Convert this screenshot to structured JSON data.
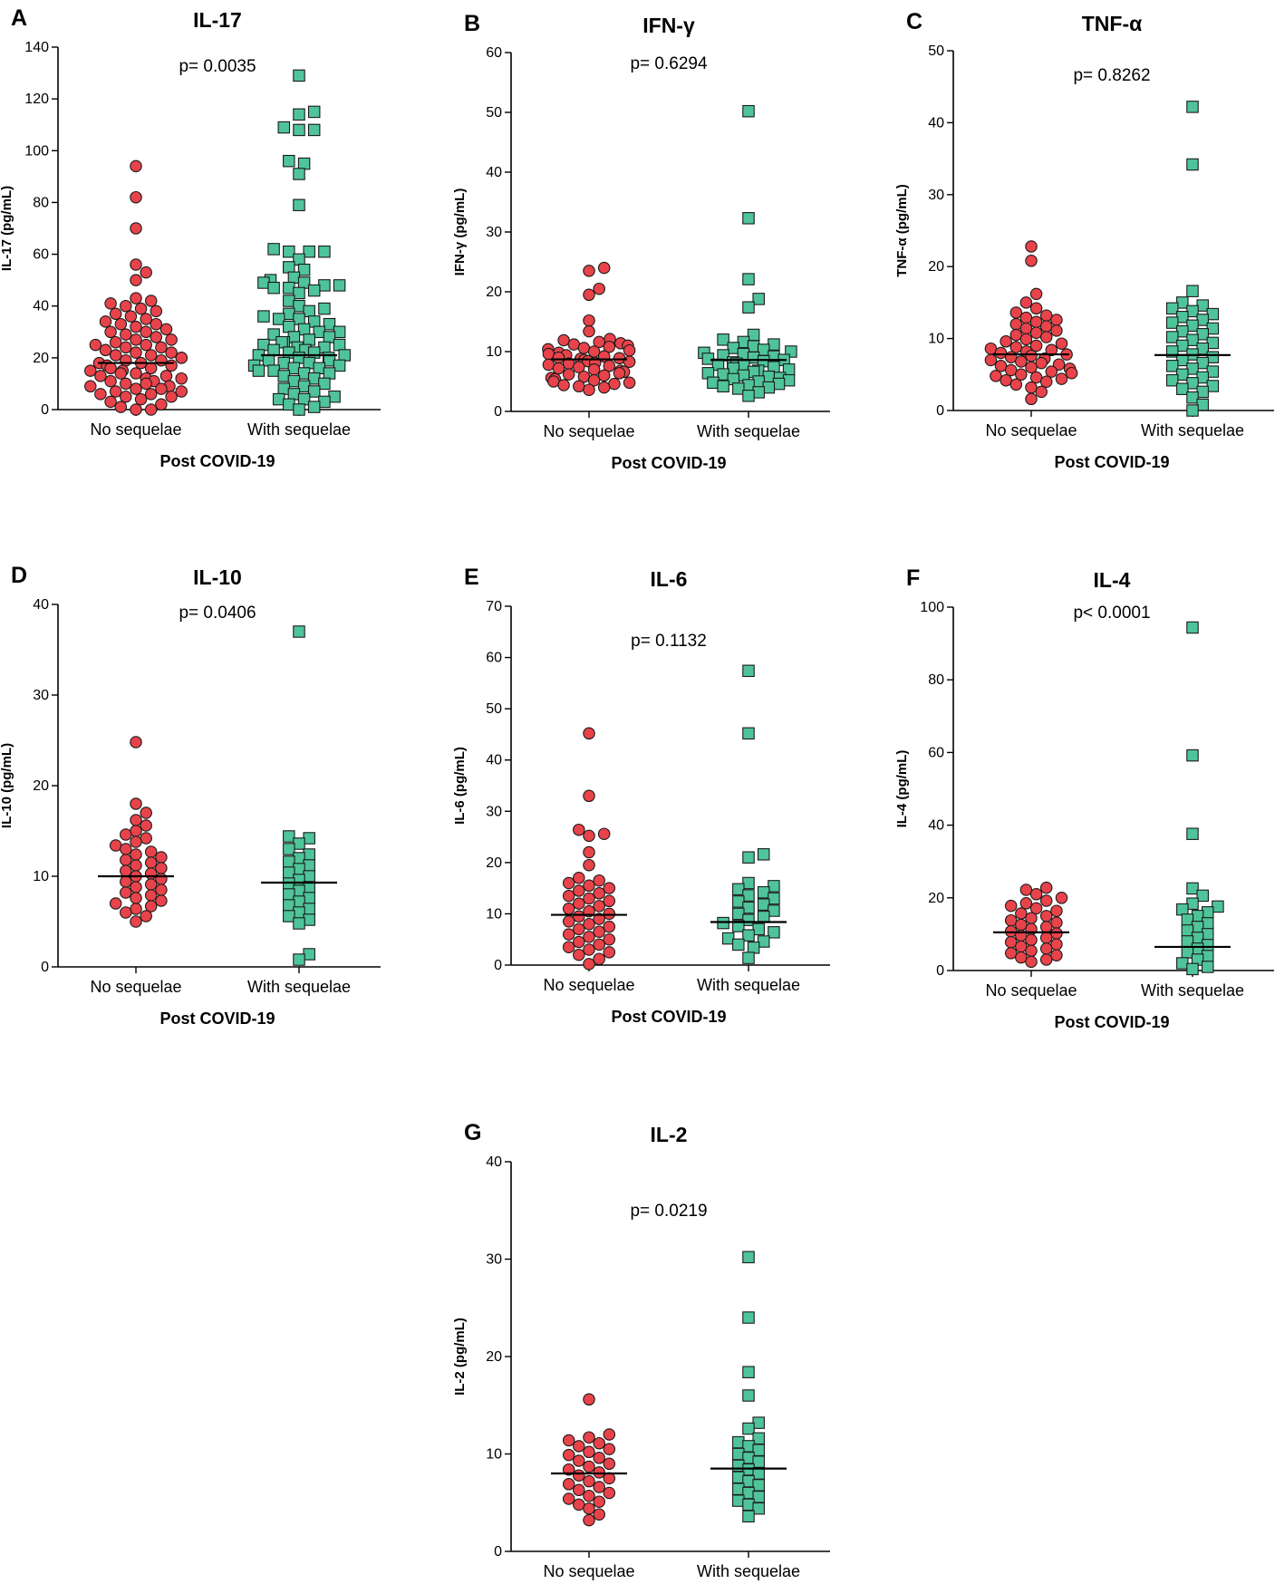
{
  "figure": {
    "x_axis_title": "Post COVID-19",
    "group_labels": [
      "No sequelae",
      "With sequelae"
    ],
    "colors": {
      "no_sequelae": "#e8434a",
      "with_sequelae": "#4fc49a",
      "marker_edge": "#1a1a1a"
    }
  },
  "chart_data": [
    {
      "type": "scatter",
      "panel": "A",
      "title": "IL-17",
      "ylabel": "IL-17 (pg/mL)",
      "xlabel": "Post COVID-19",
      "p_value": "p= 0.0035",
      "ylim": [
        0,
        140
      ],
      "yticks": [
        0,
        20,
        40,
        60,
        80,
        100,
        120,
        140
      ],
      "categories": [
        "No sequelae",
        "With sequelae"
      ],
      "series": [
        {
          "name": "No sequelae",
          "marker": "circle",
          "mean": 18,
          "values": [
            94,
            82,
            70,
            56,
            53,
            50,
            43,
            42,
            41,
            40,
            39,
            38,
            37,
            36,
            35,
            34,
            33,
            33,
            32,
            31,
            30,
            30,
            29,
            28,
            27,
            27,
            26,
            25,
            25,
            24,
            24,
            23,
            22,
            22,
            21,
            21,
            20,
            20,
            19,
            19,
            18,
            18,
            17,
            17,
            16,
            16,
            15,
            15,
            14,
            14,
            13,
            13,
            12,
            12,
            11,
            11,
            10,
            10,
            9,
            9,
            8,
            8,
            7,
            7,
            6,
            6,
            5,
            5,
            4,
            3,
            2,
            1,
            0,
            0
          ]
        },
        {
          "name": "With sequelae",
          "marker": "square",
          "mean": 21,
          "values": [
            129,
            115,
            114,
            109,
            108,
            108,
            96,
            95,
            91,
            79,
            62,
            61,
            61,
            61,
            58,
            55,
            54,
            51,
            50,
            49,
            49,
            48,
            48,
            47,
            47,
            46,
            45,
            42,
            40,
            39,
            38,
            37,
            36,
            35,
            35,
            34,
            33,
            32,
            31,
            30,
            30,
            29,
            28,
            28,
            27,
            26,
            26,
            25,
            25,
            24,
            24,
            23,
            23,
            22,
            22,
            21,
            21,
            20,
            20,
            19,
            19,
            18,
            18,
            17,
            17,
            16,
            16,
            15,
            15,
            14,
            14,
            13,
            12,
            11,
            10,
            9,
            8,
            7,
            6,
            5,
            4,
            4,
            3,
            2,
            1,
            0
          ]
        }
      ]
    },
    {
      "type": "scatter",
      "panel": "B",
      "title": "IFN-γ",
      "ylabel": "IFN-γ (pg/mL)",
      "xlabel": "Post COVID-19",
      "p_value": "p= 0.6294",
      "ylim": [
        0,
        60
      ],
      "yticks": [
        0,
        10,
        20,
        30,
        40,
        50,
        60
      ],
      "categories": [
        "No sequelae",
        "With sequelae"
      ],
      "series": [
        {
          "name": "No sequelae",
          "marker": "circle",
          "mean": 8.7,
          "values": [
            24,
            23.5,
            20.5,
            19.5,
            15.2,
            13.4,
            12.1,
            11.9,
            11.6,
            11.4,
            11.2,
            11.0,
            10.8,
            10.6,
            10.4,
            10.2,
            10.0,
            9.8,
            9.6,
            9.4,
            9.2,
            9.0,
            8.9,
            8.8,
            8.6,
            8.4,
            8.3,
            8.1,
            8.0,
            7.8,
            7.6,
            7.4,
            7.2,
            7.0,
            6.8,
            6.6,
            6.4,
            6.2,
            6.0,
            5.8,
            5.6,
            5.4,
            5.2,
            5.0,
            4.8,
            4.6,
            4.4,
            4.2,
            4.0,
            3.6
          ]
        },
        {
          "name": "With sequelae",
          "marker": "square",
          "mean": 8.6,
          "values": [
            50.2,
            32.3,
            22.1,
            18.8,
            17.4,
            12.8,
            12.0,
            11.6,
            11.2,
            10.9,
            10.6,
            10.3,
            10.0,
            9.8,
            9.6,
            9.4,
            9.2,
            9.0,
            8.8,
            8.6,
            8.4,
            8.2,
            8.0,
            7.8,
            7.6,
            7.4,
            7.2,
            7.0,
            6.8,
            6.6,
            6.4,
            6.2,
            6.0,
            5.8,
            5.6,
            5.4,
            5.2,
            5.0,
            4.8,
            4.6,
            4.4,
            4.2,
            4.0,
            3.8,
            3.2,
            2.6
          ]
        }
      ]
    },
    {
      "type": "scatter",
      "panel": "C",
      "title": "TNF-α",
      "ylabel": "TNF-α (pg/mL)",
      "xlabel": "Post COVID-19",
      "p_value": "p= 0.8262",
      "ylim": [
        0,
        50
      ],
      "yticks": [
        0,
        10,
        20,
        30,
        40,
        50
      ],
      "categories": [
        "No sequelae",
        "With sequelae"
      ],
      "series": [
        {
          "name": "No sequelae",
          "marker": "circle",
          "mean": 7.8,
          "values": [
            22.8,
            20.8,
            16.2,
            15.0,
            14.2,
            13.6,
            13.2,
            12.9,
            12.6,
            12.3,
            12.0,
            11.7,
            11.4,
            11.1,
            10.8,
            10.5,
            10.2,
            9.9,
            9.6,
            9.3,
            9.0,
            8.8,
            8.6,
            8.4,
            8.2,
            8.0,
            7.8,
            7.6,
            7.4,
            7.2,
            7.0,
            6.8,
            6.6,
            6.4,
            6.2,
            6.0,
            5.8,
            5.6,
            5.4,
            5.2,
            5.0,
            4.8,
            4.6,
            4.4,
            4.2,
            4.0,
            3.6,
            3.2,
            2.6,
            1.6
          ]
        },
        {
          "name": "With sequelae",
          "marker": "square",
          "mean": 7.7,
          "values": [
            42.2,
            34.2,
            16.6,
            15.0,
            14.6,
            14.2,
            13.8,
            13.4,
            13.0,
            12.6,
            12.2,
            11.8,
            11.4,
            11.0,
            10.6,
            10.2,
            9.8,
            9.4,
            9.0,
            8.6,
            8.2,
            7.8,
            7.4,
            7.0,
            6.6,
            6.2,
            5.8,
            5.4,
            5.0,
            4.6,
            4.2,
            3.8,
            3.4,
            3.0,
            2.6,
            1.8,
            0.8,
            0
          ]
        }
      ]
    },
    {
      "type": "scatter",
      "panel": "D",
      "title": "IL-10",
      "ylabel": "IL-10 (pg/mL)",
      "xlabel": "Post COVID-19",
      "p_value": "p= 0.0406",
      "ylim": [
        0,
        40
      ],
      "yticks": [
        0,
        10,
        20,
        30,
        40
      ],
      "categories": [
        "No sequelae",
        "With sequelae"
      ],
      "series": [
        {
          "name": "No sequelae",
          "marker": "circle",
          "mean": 10,
          "values": [
            24.8,
            18.0,
            17.0,
            16.2,
            15.6,
            15.0,
            14.6,
            14.2,
            13.8,
            13.4,
            13.0,
            12.7,
            12.4,
            12.1,
            11.8,
            11.5,
            11.2,
            10.9,
            10.6,
            10.3,
            10.0,
            9.7,
            9.4,
            9.1,
            8.8,
            8.5,
            8.2,
            7.9,
            7.6,
            7.3,
            7.0,
            6.7,
            6.4,
            6.0,
            5.6,
            5.0
          ]
        },
        {
          "name": "With sequelae",
          "marker": "square",
          "mean": 9.3,
          "values": [
            37.0,
            14.4,
            14.2,
            13.6,
            13.0,
            12.4,
            12.0,
            11.6,
            11.2,
            10.8,
            10.4,
            10.0,
            9.6,
            9.2,
            8.8,
            8.4,
            8.0,
            7.6,
            7.2,
            6.8,
            6.4,
            6.0,
            5.6,
            5.2,
            4.8,
            1.4,
            0.8
          ]
        }
      ]
    },
    {
      "type": "scatter",
      "panel": "E",
      "title": "IL-6",
      "ylabel": "IL-6 (pg/mL)",
      "xlabel": "Post COVID-19",
      "p_value": "p= 0.1132",
      "ylim": [
        0,
        70
      ],
      "yticks": [
        0,
        10,
        20,
        30,
        40,
        50,
        60,
        70
      ],
      "categories": [
        "No sequelae",
        "With sequelae"
      ],
      "series": [
        {
          "name": "No sequelae",
          "marker": "circle",
          "mean": 9.8,
          "values": [
            45.2,
            33.0,
            26.4,
            25.6,
            25.2,
            22.0,
            19.5,
            17.0,
            16.5,
            16.0,
            15.5,
            15.0,
            14.5,
            14.0,
            13.5,
            13.0,
            12.5,
            12.0,
            11.5,
            11.0,
            10.5,
            10.0,
            9.5,
            9.0,
            8.5,
            8.0,
            7.5,
            7.0,
            6.5,
            6.0,
            5.5,
            5.0,
            4.5,
            4.0,
            3.5,
            3.0,
            2.5,
            2.0,
            1.2,
            0.2
          ]
        },
        {
          "name": "With sequelae",
          "marker": "square",
          "mean": 8.4,
          "values": [
            57.4,
            45.2,
            21.6,
            21.0,
            16.0,
            15.4,
            14.8,
            14.2,
            13.6,
            13.0,
            12.4,
            11.8,
            11.2,
            10.6,
            10.0,
            9.4,
            8.8,
            8.2,
            7.6,
            7.0,
            6.4,
            5.8,
            5.2,
            4.6,
            4.0,
            3.4,
            1.4
          ]
        }
      ]
    },
    {
      "type": "scatter",
      "panel": "F",
      "title": "IL-4",
      "ylabel": "IL-4 (pg/mL)",
      "xlabel": "Post COVID-19",
      "p_value": "p< 0.0001",
      "ylim": [
        0,
        100
      ],
      "yticks": [
        0,
        20,
        40,
        60,
        80,
        100
      ],
      "categories": [
        "No sequelae",
        "With sequelae"
      ],
      "series": [
        {
          "name": "No sequelae",
          "marker": "circle",
          "mean": 10.5,
          "values": [
            22.8,
            22.2,
            21.0,
            20.0,
            19.2,
            18.5,
            17.8,
            17.1,
            16.4,
            15.7,
            15.0,
            14.4,
            13.8,
            13.2,
            12.6,
            12.0,
            11.4,
            10.8,
            10.2,
            9.6,
            9.0,
            8.4,
            7.8,
            7.2,
            6.6,
            6.0,
            5.4,
            4.8,
            4.2,
            3.6,
            3.0,
            2.4
          ]
        },
        {
          "name": "With sequelae",
          "marker": "square",
          "mean": 6.5,
          "values": [
            94.4,
            59.2,
            37.6,
            22.6,
            20.6,
            18.4,
            17.6,
            16.8,
            16.0,
            15.0,
            14.0,
            13.0,
            12.0,
            11.0,
            10.0,
            9.0,
            8.0,
            7.0,
            6.0,
            5.0,
            4.0,
            3.0,
            2.0,
            1.0,
            0.4
          ]
        }
      ]
    },
    {
      "type": "scatter",
      "panel": "G",
      "title": "IL-2",
      "ylabel": "IL-2 (pg/mL)",
      "xlabel": "Post COVID-19",
      "p_value": "p= 0.0219",
      "ylim": [
        0,
        40
      ],
      "yticks": [
        0,
        10,
        20,
        30,
        40
      ],
      "categories": [
        "No sequelae",
        "With sequelae"
      ],
      "series": [
        {
          "name": "No sequelae",
          "marker": "circle",
          "mean": 8,
          "values": [
            15.6,
            12.0,
            11.7,
            11.4,
            11.1,
            10.8,
            10.5,
            10.2,
            9.9,
            9.6,
            9.3,
            9.0,
            8.7,
            8.4,
            8.1,
            7.8,
            7.5,
            7.2,
            6.9,
            6.6,
            6.3,
            6.0,
            5.7,
            5.4,
            5.1,
            4.8,
            4.4,
            3.8,
            3.2
          ]
        },
        {
          "name": "With sequelae",
          "marker": "square",
          "mean": 8.5,
          "values": [
            30.2,
            24.0,
            18.4,
            16.0,
            13.2,
            12.6,
            11.6,
            11.2,
            10.8,
            10.4,
            10.0,
            9.6,
            9.2,
            8.8,
            8.4,
            8.0,
            7.6,
            7.2,
            6.8,
            6.4,
            6.0,
            5.6,
            5.2,
            4.8,
            4.4,
            3.6
          ]
        }
      ]
    }
  ]
}
